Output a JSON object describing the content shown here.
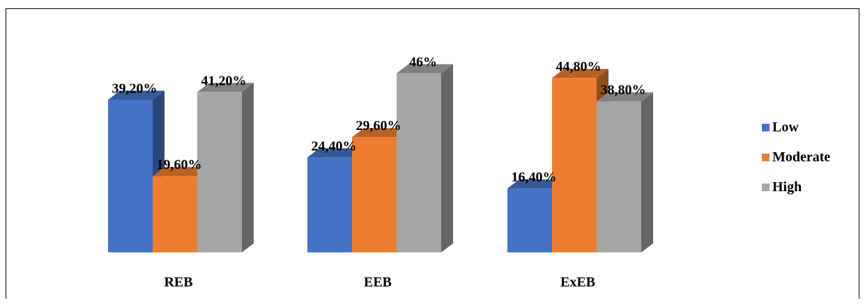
{
  "chart_data": {
    "type": "bar",
    "categories": [
      "REB",
      "EEB",
      "ExEB"
    ],
    "series": [
      {
        "name": "Low",
        "values": [
          39.2,
          24.4,
          16.4
        ],
        "labels": [
          "39,20%",
          "24,40%",
          "16,40%"
        ],
        "color": "#4472C4"
      },
      {
        "name": "Moderate",
        "values": [
          19.6,
          29.6,
          44.8
        ],
        "labels": [
          "19,60%",
          "29,60%",
          "44,80%"
        ],
        "color": "#ED7D31"
      },
      {
        "name": "High",
        "values": [
          41.2,
          46.0,
          38.8
        ],
        "labels": [
          "41,20%",
          "46%",
          "38,80%"
        ],
        "color": "#A5A5A5"
      }
    ],
    "ylim": [
      0,
      50
    ],
    "style": "3d-column",
    "grid": false,
    "legend_position": "right"
  }
}
